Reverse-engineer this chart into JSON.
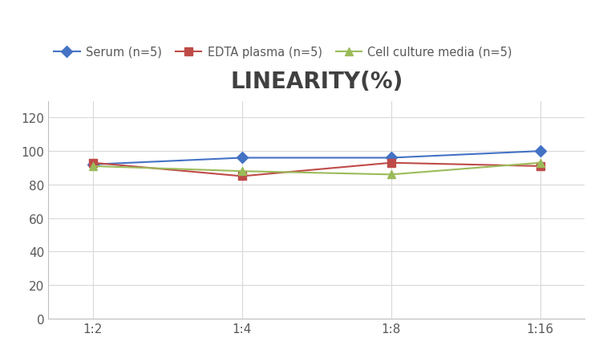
{
  "title": "LINEARITY(%)",
  "x_labels": [
    "1:2",
    "1:4",
    "1:8",
    "1:16"
  ],
  "x_positions": [
    0,
    1,
    2,
    3
  ],
  "series": [
    {
      "label": "Serum (n=5)",
      "color": "#4472C4",
      "marker": "D",
      "values": [
        92,
        96,
        96,
        100
      ]
    },
    {
      "label": "EDTA plasma (n=5)",
      "color": "#BE4B48",
      "marker": "s",
      "values": [
        93,
        85,
        93,
        91
      ]
    },
    {
      "label": "Cell culture media (n=5)",
      "color": "#9BBB59",
      "marker": "^",
      "values": [
        91,
        88,
        86,
        93
      ]
    }
  ],
  "ylim": [
    0,
    130
  ],
  "yticks": [
    0,
    20,
    40,
    60,
    80,
    100,
    120
  ],
  "background_color": "#FFFFFF",
  "grid_color": "#D9D9D9",
  "title_fontsize": 20,
  "title_color": "#404040",
  "legend_fontsize": 10.5,
  "tick_fontsize": 11,
  "tick_color": "#595959"
}
